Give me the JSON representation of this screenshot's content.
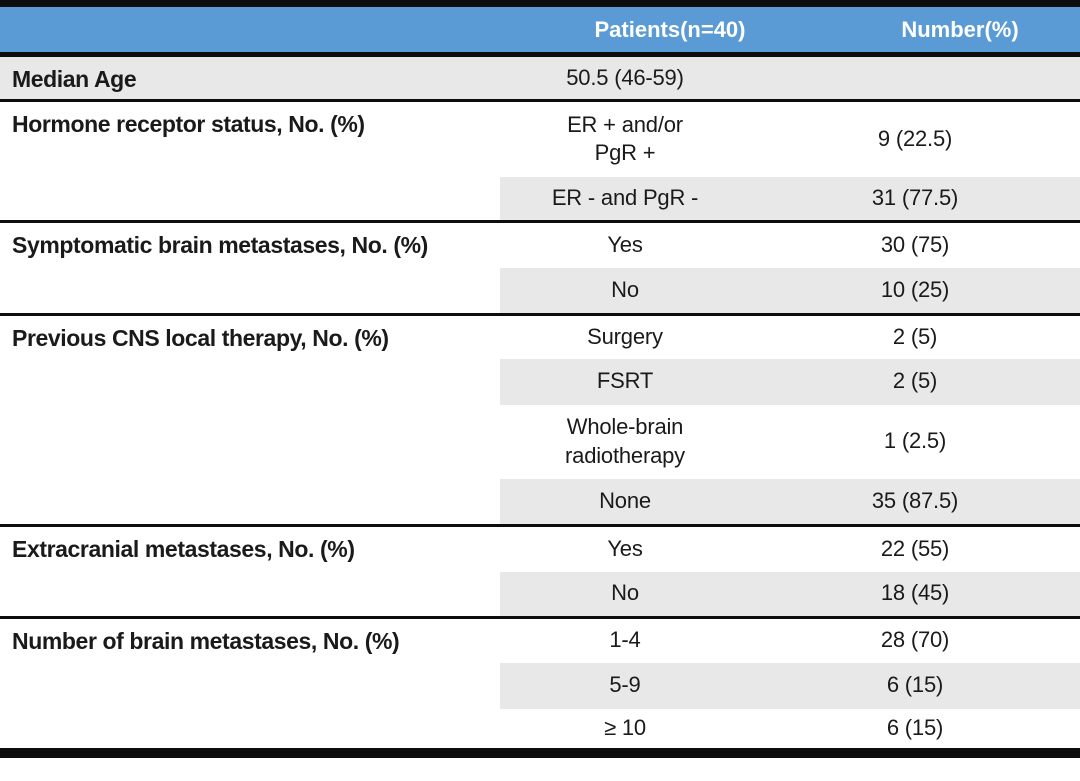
{
  "colors": {
    "header_bg": "#5B9BD5",
    "header_text": "#FFFFFF",
    "row_shade": "#E8E8E8",
    "divider": "#0D0D0D"
  },
  "table": {
    "header": {
      "col1": "",
      "col2": "Patients(n=40)",
      "col3": "Number(%)"
    },
    "sections": [
      {
        "label": "Median Age",
        "rows": [
          {
            "value": "50.5 (46-59)",
            "number": ""
          }
        ]
      },
      {
        "label": "Hormone receptor status, No. (%)",
        "rows": [
          {
            "value": "ER + and/or\nPgR +",
            "number": "9 (22.5)"
          },
          {
            "value": "ER - and PgR -",
            "number": "31 (77.5)"
          }
        ]
      },
      {
        "label": "Symptomatic brain metastases, No. (%)",
        "rows": [
          {
            "value": "Yes",
            "number": "30 (75)"
          },
          {
            "value": "No",
            "number": "10 (25)"
          }
        ]
      },
      {
        "label": "Previous CNS local therapy, No. (%)",
        "rows": [
          {
            "value": "Surgery",
            "number": "2 (5)"
          },
          {
            "value": "FSRT",
            "number": "2 (5)"
          },
          {
            "value": "Whole-brain\nradiotherapy",
            "number": "1 (2.5)"
          },
          {
            "value": "None",
            "number": "35 (87.5)"
          }
        ]
      },
      {
        "label": "Extracranial metastases, No. (%)",
        "rows": [
          {
            "value": "Yes",
            "number": "22 (55)"
          },
          {
            "value": "No",
            "number": "18 (45)"
          }
        ]
      },
      {
        "label": "Number of brain metastases, No. (%)",
        "rows": [
          {
            "value": "1-4",
            "number": "28 (70)"
          },
          {
            "value": "5-9",
            "number": "6 (15)"
          },
          {
            "value": "≥ 10",
            "number": "6 (15)"
          }
        ]
      }
    ]
  }
}
